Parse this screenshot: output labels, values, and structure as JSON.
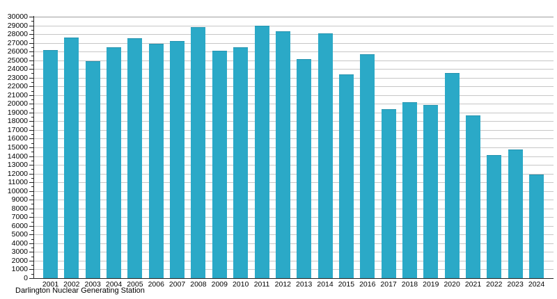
{
  "caption": "Darlington Nuclear Generating Station",
  "chart_data": {
    "type": "bar",
    "title": "Darlington Nuclear Generating Station",
    "categories": [
      "2001",
      "2002",
      "2003",
      "2004",
      "2005",
      "2006",
      "2007",
      "2008",
      "2009",
      "2010",
      "2011",
      "2012",
      "2013",
      "2014",
      "2015",
      "2016",
      "2017",
      "2018",
      "2019",
      "2020",
      "2021",
      "2022",
      "2023",
      "2024"
    ],
    "values": [
      26200,
      27600,
      24900,
      26500,
      27500,
      26900,
      27200,
      28800,
      26100,
      26500,
      29000,
      28300,
      25100,
      28100,
      23400,
      25700,
      19400,
      20200,
      19900,
      23500,
      18700,
      14100,
      14800,
      11900
    ],
    "xlabel": "",
    "ylabel": "",
    "ylim": [
      0,
      30000
    ],
    "ytick_major_step": 1000,
    "ytick_minor_step": 500,
    "grid": true,
    "legend": "none",
    "bar_color": "#2ba9c7",
    "gridline_color": "#c6c6c6",
    "axis_color": "#222222"
  }
}
